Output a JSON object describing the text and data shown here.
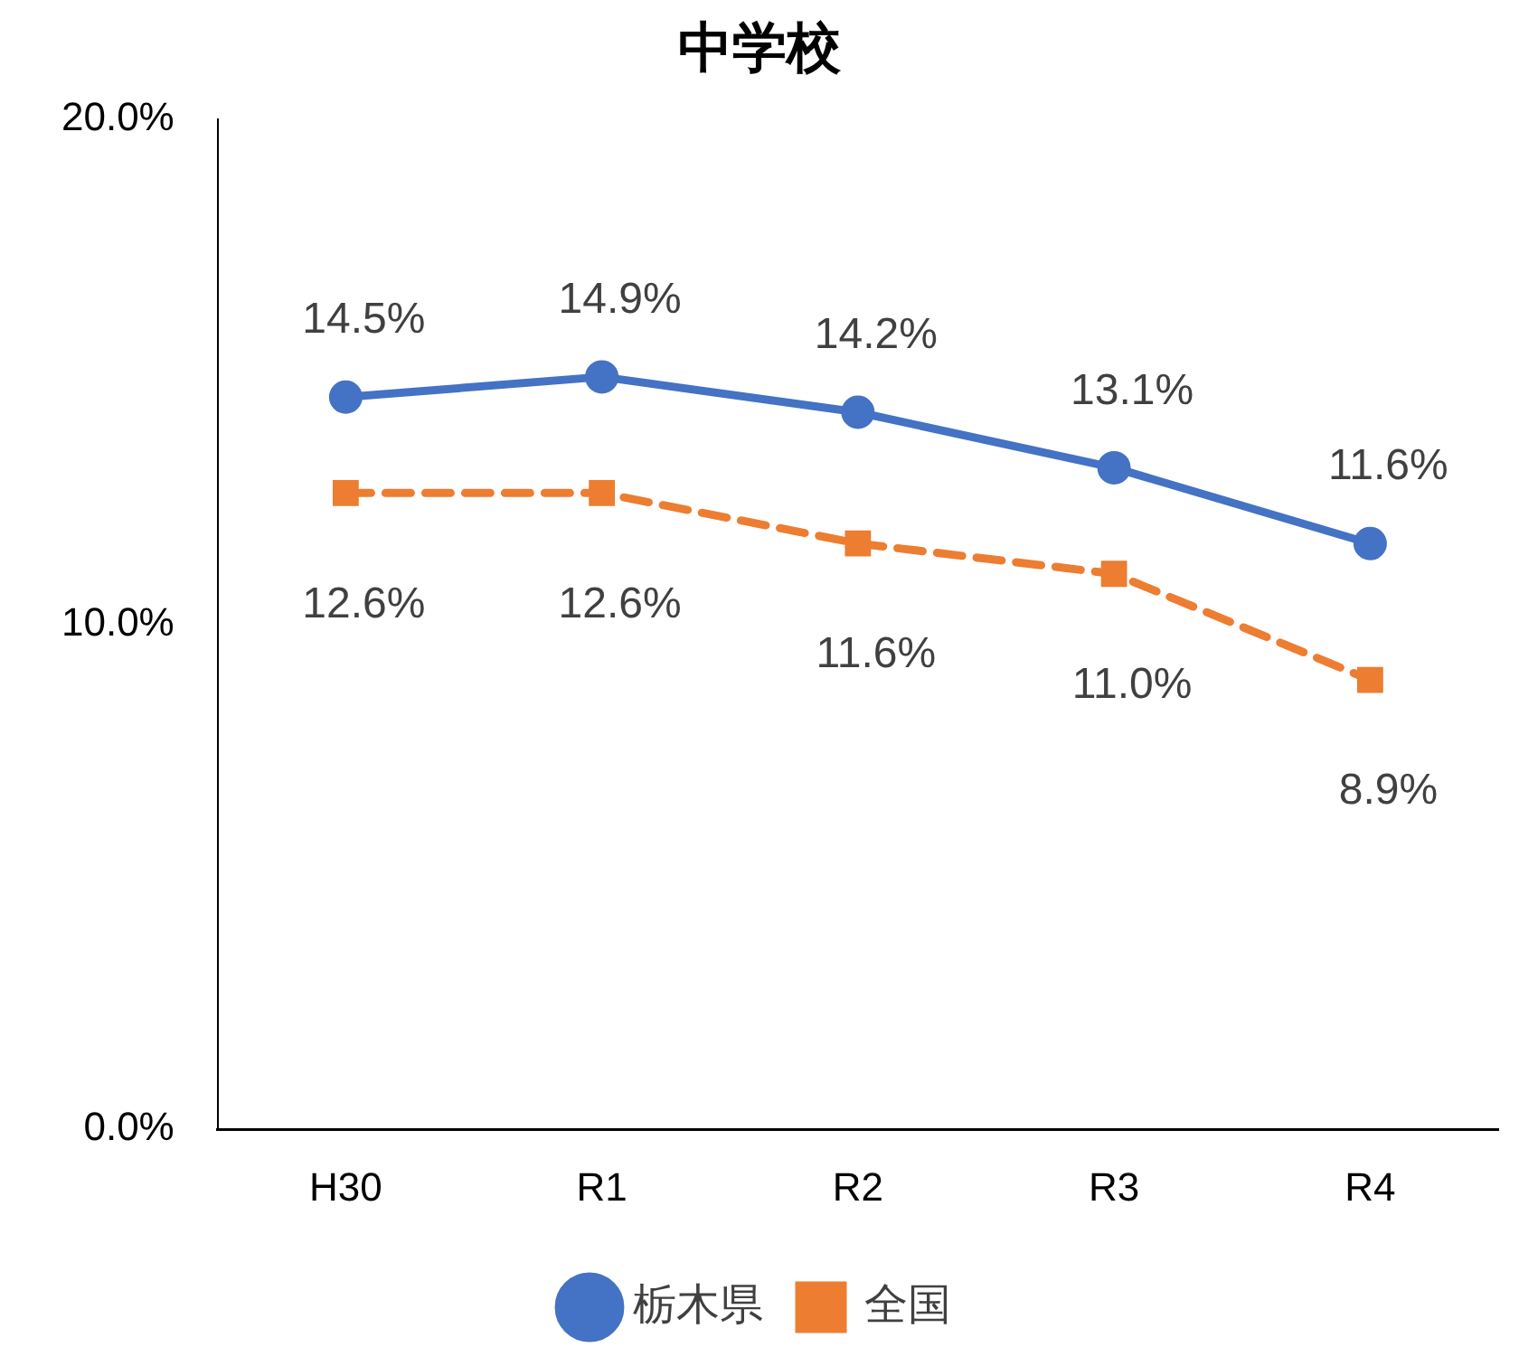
{
  "chart_data": {
    "type": "line",
    "title": "中学校",
    "categories": [
      "H30",
      "R1",
      "R2",
      "R3",
      "R4"
    ],
    "series": [
      {
        "name": "栃木県",
        "color": "#4472c4",
        "values": [
          14.5,
          14.9,
          14.2,
          13.1,
          11.6
        ],
        "value_labels": [
          "14.5%",
          "14.9%",
          "14.2%",
          "13.1%",
          "11.6%"
        ],
        "marker": "circle",
        "line_style": "solid"
      },
      {
        "name": "全国",
        "color": "#ed7d31",
        "values": [
          12.6,
          12.6,
          11.6,
          11.0,
          8.9
        ],
        "value_labels": [
          "12.6%",
          "12.6%",
          "11.6%",
          "11.0%",
          "8.9%"
        ],
        "marker": "square",
        "line_style": "dashed"
      }
    ],
    "ylim": [
      0,
      20
    ],
    "yticks": [
      {
        "value": 0,
        "label": "0.0%"
      },
      {
        "value": 10,
        "label": "10.0%"
      },
      {
        "value": 20,
        "label": "20.0%"
      }
    ],
    "grid": false,
    "legend": "bottom"
  }
}
